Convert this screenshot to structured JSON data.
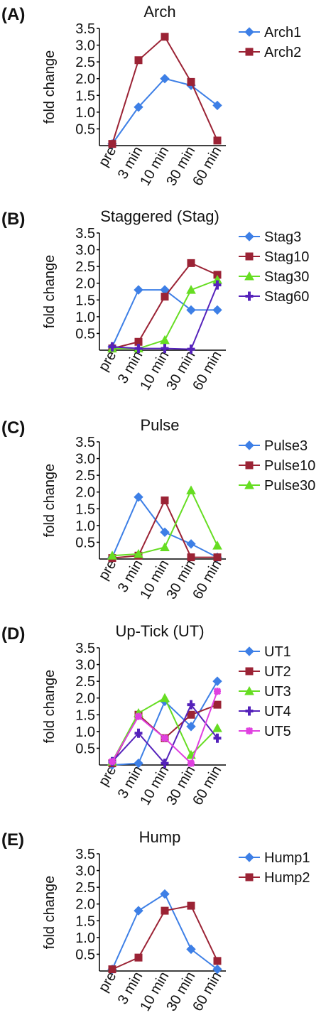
{
  "chart_data": [
    {
      "type": "line",
      "panel_label": "(A)",
      "title": "Arch",
      "y_label": "fold change",
      "categories": [
        "pre",
        "3 min",
        "10 min",
        "30 min",
        "60 min"
      ],
      "ylim": [
        0,
        3.5
      ],
      "yticks": [
        0.5,
        {
          "value": 1,
          "label": "1.0"
        },
        1.5,
        {
          "value": 2,
          "label": "2.0"
        },
        2.5,
        {
          "value": 3,
          "label": "3.0"
        },
        3.5
      ],
      "series": [
        {
          "name": "Arch1",
          "color": "#3d7fe6",
          "values": [
            0.05,
            1.15,
            2.0,
            1.8,
            1.2
          ]
        },
        {
          "name": "Arch2",
          "color": "#9b2335",
          "values": [
            0.05,
            2.55,
            3.25,
            1.9,
            0.15
          ]
        }
      ]
    },
    {
      "type": "line",
      "panel_label": "(B)",
      "title": "Staggered (Stag)",
      "y_label": "fold change",
      "categories": [
        "pre",
        "3 min",
        "10 min",
        "30 min",
        "60 min"
      ],
      "ylim": [
        0,
        3.5
      ],
      "yticks": [
        0.5,
        {
          "value": 1,
          "label": "1.0"
        },
        1.5,
        {
          "value": 2,
          "label": "2.0"
        },
        2.5,
        {
          "value": 3,
          "label": "3.0"
        },
        3.5
      ],
      "series": [
        {
          "name": "Stag3",
          "color": "#3d7fe6",
          "values": [
            0.1,
            1.8,
            1.8,
            1.2,
            1.2
          ]
        },
        {
          "name": "Stag10",
          "color": "#9b2335",
          "values": [
            0.05,
            0.25,
            1.6,
            2.6,
            2.25
          ]
        },
        {
          "name": "Stag30",
          "color": "#66dd22",
          "values": [
            0.05,
            0.05,
            0.3,
            1.8,
            2.1
          ]
        },
        {
          "name": "Stag60",
          "color": "#5522bb",
          "values": [
            0.1,
            0.05,
            0.05,
            0.03,
            1.95
          ]
        }
      ]
    },
    {
      "type": "line",
      "panel_label": "(C)",
      "title": "Pulse",
      "y_label": "fold change",
      "categories": [
        "pre",
        "3 min",
        "10 min",
        "30 min",
        "60 min"
      ],
      "ylim": [
        0,
        3.5
      ],
      "yticks": [
        0.5,
        {
          "value": 1,
          "label": "1.0"
        },
        1.5,
        {
          "value": 2,
          "label": "2.0"
        },
        2.5,
        {
          "value": 3,
          "label": "3.0"
        },
        3.5
      ],
      "series": [
        {
          "name": "Pulse3",
          "color": "#3d7fe6",
          "values": [
            0.05,
            1.85,
            0.8,
            0.45,
            0.05
          ]
        },
        {
          "name": "Pulse10",
          "color": "#9b2335",
          "values": [
            0.03,
            0.1,
            1.75,
            0.05,
            0.05
          ]
        },
        {
          "name": "Pulse30",
          "color": "#66dd22",
          "values": [
            0.1,
            0.15,
            0.35,
            2.05,
            0.4
          ]
        }
      ]
    },
    {
      "type": "line",
      "panel_label": "(D)",
      "title": "Up-Tick (UT)",
      "y_label": "fold change",
      "categories": [
        "pre",
        "3 min",
        "10 min",
        "30 min",
        "60 min"
      ],
      "ylim": [
        0,
        3.5
      ],
      "yticks": [
        0.5,
        {
          "value": 1,
          "label": "1.0"
        },
        1.5,
        {
          "value": 2,
          "label": "2.0"
        },
        2.5,
        {
          "value": 3,
          "label": "3.0"
        },
        3.5
      ],
      "series": [
        {
          "name": "UT1",
          "color": "#3d7fe6",
          "values": [
            0,
            0.05,
            1.9,
            1.15,
            2.5
          ]
        },
        {
          "name": "UT2",
          "color": "#9b2335",
          "values": [
            0.05,
            1.5,
            0.8,
            1.5,
            1.8
          ]
        },
        {
          "name": "UT3",
          "color": "#66dd22",
          "values": [
            0.1,
            1.55,
            2.0,
            0.3,
            1.1
          ]
        },
        {
          "name": "UT4",
          "color": "#5522bb",
          "values": [
            0.1,
            0.95,
            0.05,
            1.8,
            0.8
          ]
        },
        {
          "name": "UT5",
          "color": "#e040e0",
          "values": [
            0.1,
            1.45,
            0.8,
            0.05,
            2.2
          ]
        }
      ]
    },
    {
      "type": "line",
      "panel_label": "(E)",
      "title": "Hump",
      "y_label": "fold change",
      "categories": [
        "pre",
        "3 min",
        "10 min",
        "30 min",
        "60 min"
      ],
      "ylim": [
        0,
        3.5
      ],
      "yticks": [
        0.5,
        {
          "value": 1,
          "label": "1.0"
        },
        1.5,
        {
          "value": 2,
          "label": "2.0"
        },
        2.5,
        {
          "value": 3,
          "label": "3.0"
        },
        3.5
      ],
      "series": [
        {
          "name": "Hump1",
          "color": "#3d7fe6",
          "values": [
            0.05,
            1.8,
            2.3,
            0.65,
            0.05
          ]
        },
        {
          "name": "Hump2",
          "color": "#9b2335",
          "values": [
            0.05,
            0.4,
            1.8,
            1.95,
            0.3
          ]
        }
      ]
    }
  ]
}
